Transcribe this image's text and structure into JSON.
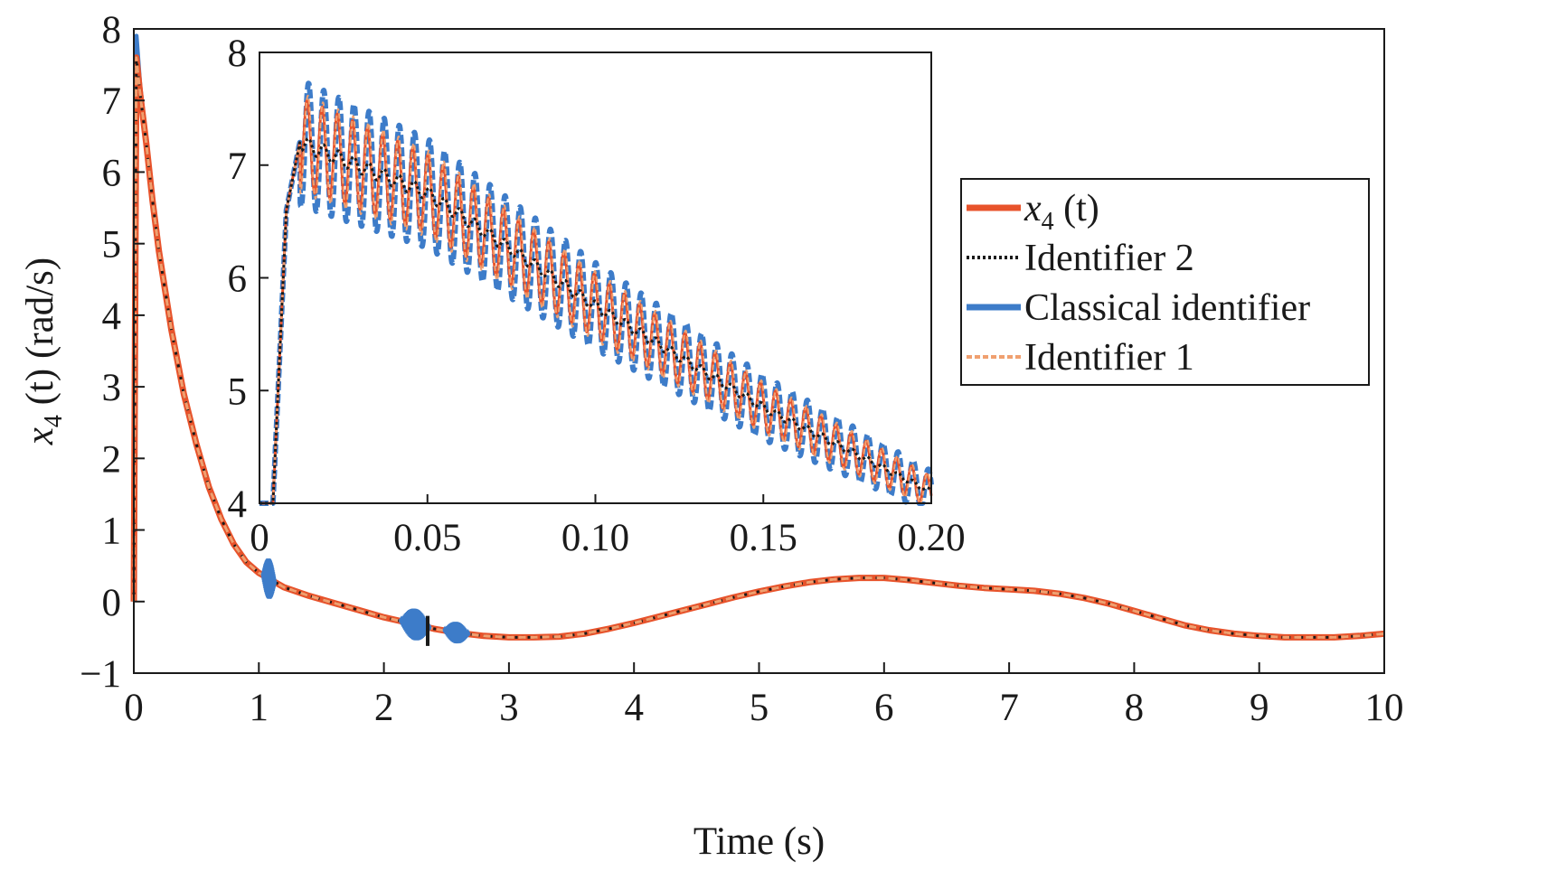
{
  "chart_data": [
    {
      "id": "main",
      "type": "line",
      "xlabel": "Time (s)",
      "ylabel_var": "x",
      "ylabel_sub": "4",
      "ylabel_rest": " (t) (rad/s)",
      "xlim": [
        0,
        10
      ],
      "ylim": [
        -1,
        8
      ],
      "xticks": [
        0,
        1,
        2,
        3,
        4,
        5,
        6,
        7,
        8,
        9,
        10
      ],
      "xtick_labels": [
        "0",
        "1",
        "2",
        "3",
        "4",
        "5",
        "6",
        "7",
        "8",
        "9",
        "10"
      ],
      "yticks": [
        -1,
        0,
        1,
        2,
        3,
        4,
        5,
        6,
        7,
        8
      ],
      "ytick_labels": [
        "−1",
        "0",
        "1",
        "2",
        "3",
        "4",
        "5",
        "6",
        "7",
        "8"
      ],
      "grid": false,
      "x": [
        0,
        0.02,
        0.05,
        0.1,
        0.15,
        0.2,
        0.3,
        0.4,
        0.5,
        0.6,
        0.7,
        0.8,
        0.9,
        1.0,
        1.05,
        1.1,
        1.2,
        1.4,
        1.6,
        1.8,
        2.0,
        2.2,
        2.4,
        2.6,
        2.8,
        3.0,
        3.2,
        3.4,
        3.6,
        3.8,
        4.0,
        4.2,
        4.4,
        4.6,
        4.8,
        5.0,
        5.2,
        5.4,
        5.6,
        5.8,
        6.0,
        6.2,
        6.4,
        6.6,
        6.8,
        7.0,
        7.2,
        7.4,
        7.6,
        7.8,
        8.0,
        8.2,
        8.4,
        8.6,
        8.8,
        9.0,
        9.2,
        9.4,
        9.6,
        9.8,
        10.0
      ],
      "series": [
        {
          "name": "x4 (t)",
          "color": "#e8532b",
          "y": [
            0,
            7.6,
            7.1,
            6.4,
            5.6,
            4.9,
            3.8,
            2.9,
            2.2,
            1.6,
            1.15,
            0.8,
            0.55,
            0.4,
            0.35,
            0.3,
            0.2,
            0.08,
            -0.02,
            -0.12,
            -0.22,
            -0.3,
            -0.38,
            -0.44,
            -0.48,
            -0.5,
            -0.5,
            -0.49,
            -0.45,
            -0.38,
            -0.3,
            -0.21,
            -0.12,
            -0.03,
            0.06,
            0.14,
            0.21,
            0.27,
            0.31,
            0.33,
            0.33,
            0.3,
            0.26,
            0.22,
            0.19,
            0.17,
            0.15,
            0.11,
            0.05,
            -0.03,
            -0.13,
            -0.23,
            -0.33,
            -0.4,
            -0.45,
            -0.48,
            -0.5,
            -0.5,
            -0.5,
            -0.48,
            -0.45
          ]
        },
        {
          "name": "Identifier 2",
          "color": "#1a1a1a",
          "y": [
            0,
            7.6,
            7.1,
            6.4,
            5.6,
            4.9,
            3.8,
            2.9,
            2.2,
            1.6,
            1.15,
            0.8,
            0.55,
            0.4,
            0.35,
            0.3,
            0.2,
            0.08,
            -0.02,
            -0.12,
            -0.22,
            -0.3,
            -0.38,
            -0.44,
            -0.48,
            -0.5,
            -0.5,
            -0.49,
            -0.45,
            -0.38,
            -0.3,
            -0.21,
            -0.12,
            -0.03,
            0.06,
            0.14,
            0.21,
            0.27,
            0.31,
            0.33,
            0.33,
            0.3,
            0.26,
            0.22,
            0.19,
            0.17,
            0.15,
            0.11,
            0.05,
            -0.03,
            -0.13,
            -0.23,
            -0.33,
            -0.4,
            -0.45,
            -0.48,
            -0.5,
            -0.5,
            -0.5,
            -0.48,
            -0.45
          ]
        },
        {
          "name": "Classical identifier",
          "color": "#3d7cc9",
          "y": [
            0,
            7.9,
            7.2,
            6.45,
            5.6,
            4.9,
            3.8,
            2.9,
            2.2,
            1.6,
            1.15,
            0.8,
            0.55,
            0.4,
            0.35,
            0.3,
            0.2,
            0.08,
            -0.02,
            -0.12,
            -0.22,
            -0.3,
            -0.38,
            -0.44,
            -0.48,
            -0.5,
            -0.5,
            -0.49,
            -0.45,
            -0.38,
            -0.3,
            -0.21,
            -0.12,
            -0.03,
            0.06,
            0.14,
            0.21,
            0.27,
            0.31,
            0.33,
            0.33,
            0.3,
            0.26,
            0.22,
            0.19,
            0.17,
            0.15,
            0.11,
            0.05,
            -0.03,
            -0.13,
            -0.23,
            -0.33,
            -0.4,
            -0.45,
            -0.48,
            -0.5,
            -0.5,
            -0.5,
            -0.48,
            -0.45
          ]
        },
        {
          "name": "Identifier 1",
          "color": "#f0a070",
          "y": [
            0,
            7.6,
            7.1,
            6.4,
            5.6,
            4.9,
            3.8,
            2.9,
            2.2,
            1.6,
            1.15,
            0.8,
            0.55,
            0.4,
            0.35,
            0.3,
            0.2,
            0.08,
            -0.02,
            -0.12,
            -0.22,
            -0.3,
            -0.38,
            -0.44,
            -0.48,
            -0.5,
            -0.5,
            -0.49,
            -0.45,
            -0.38,
            -0.3,
            -0.21,
            -0.12,
            -0.03,
            0.06,
            0.14,
            0.21,
            0.27,
            0.31,
            0.33,
            0.33,
            0.3,
            0.26,
            0.22,
            0.19,
            0.17,
            0.15,
            0.11,
            0.05,
            -0.03,
            -0.13,
            -0.23,
            -0.33,
            -0.4,
            -0.45,
            -0.48,
            -0.5,
            -0.5,
            -0.5,
            -0.48,
            -0.45
          ]
        }
      ],
      "disturbances": [
        {
          "center": 1.08,
          "halfwidth": 0.05,
          "amplitude": 0.28
        },
        {
          "center": 2.25,
          "halfwidth": 0.12,
          "amplitude": 0.22
        },
        {
          "center": 2.58,
          "halfwidth": 0.1,
          "amplitude": 0.15
        }
      ],
      "spike": {
        "x": 2.35,
        "y_low": -0.62,
        "y_high": -0.2
      }
    },
    {
      "id": "inset",
      "type": "line",
      "xlim": [
        0,
        0.2
      ],
      "ylim": [
        4,
        8
      ],
      "xticks": [
        0,
        0.05,
        0.1,
        0.15,
        0.2
      ],
      "xtick_labels": [
        "0",
        "0.05",
        "0.10",
        "0.15",
        "0.20"
      ],
      "yticks": [
        4,
        5,
        6,
        7,
        8
      ],
      "ytick_labels": [
        "4",
        "5",
        "6",
        "7",
        "8"
      ],
      "grid": false,
      "trend": {
        "x": [
          0,
          0.004,
          0.008,
          0.012,
          0.05,
          0.1,
          0.15,
          0.2
        ],
        "y": [
          4.0,
          4.0,
          6.6,
          7.2,
          6.75,
          5.75,
          4.85,
          4.1
        ]
      },
      "oscillation": {
        "period": 0.0045,
        "amplitude_start": 0.45,
        "amplitude_end": 0.15
      },
      "series": [
        {
          "name": "x4 (t)",
          "color": "#e8532b"
        },
        {
          "name": "Identifier 2",
          "color": "#1a1a1a"
        },
        {
          "name": "Classical identifier",
          "color": "#3d7cc9"
        },
        {
          "name": "Identifier 1",
          "color": "#f0a070"
        }
      ]
    }
  ],
  "legend": {
    "placement": "right-center",
    "entries": [
      {
        "var": "x",
        "sub": "4",
        "rest": " (t)",
        "color": "#e8532b",
        "style": "solid-thick"
      },
      {
        "text": "Identifier 2",
        "color": "#1a1a1a",
        "style": "dotted"
      },
      {
        "text": "Classical identifier",
        "color": "#3d7cc9",
        "style": "solid-thick"
      },
      {
        "text": "Identifier 1",
        "color": "#f0a070",
        "style": "dashed"
      }
    ]
  }
}
